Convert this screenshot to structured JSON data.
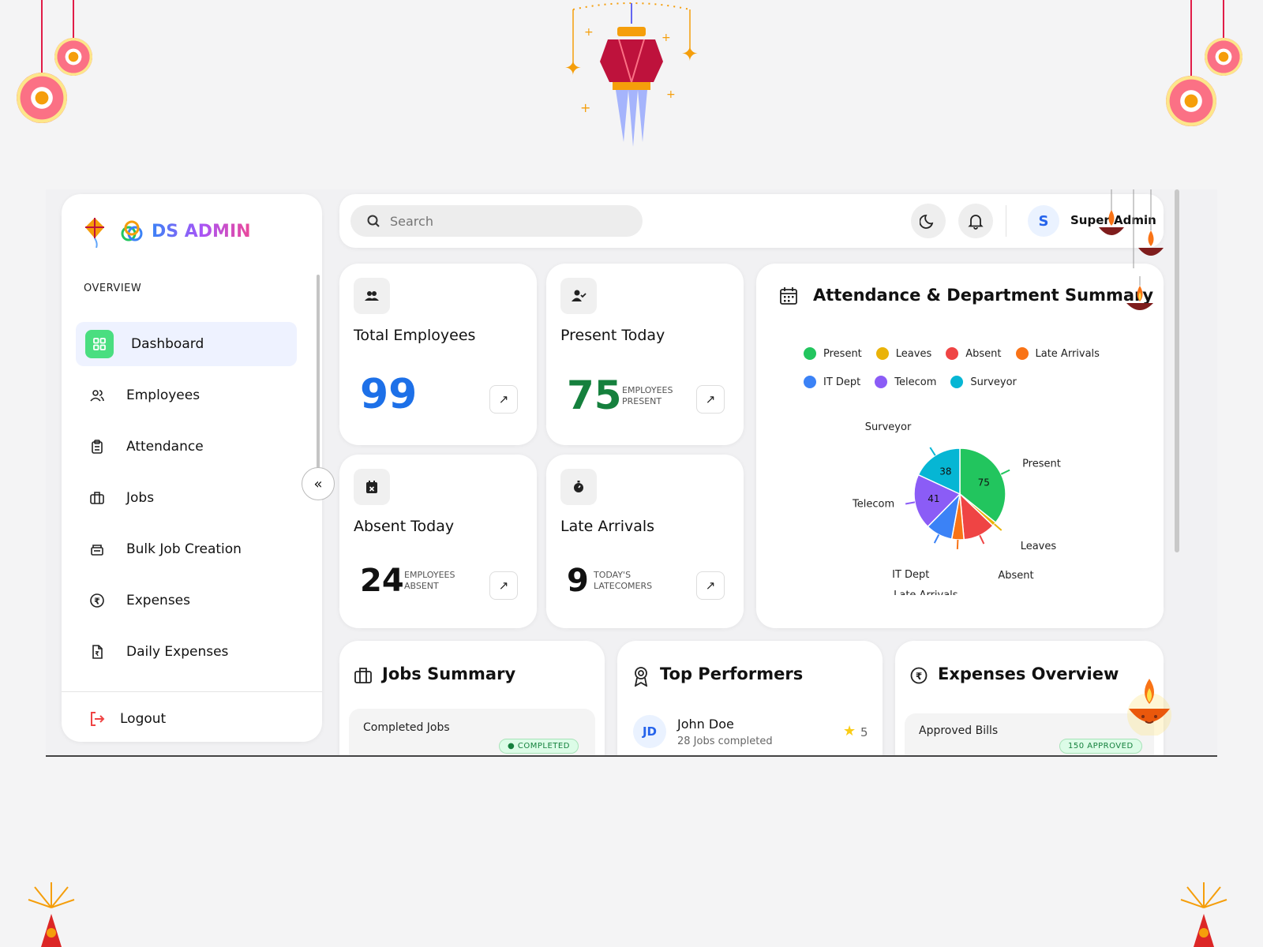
{
  "brand": {
    "name": "DS ADMIN"
  },
  "sidebar": {
    "section_label": "OVERVIEW",
    "items": [
      {
        "label": "Dashboard",
        "icon": "grid-icon",
        "active": true
      },
      {
        "label": "Employees",
        "icon": "users-icon"
      },
      {
        "label": "Attendance",
        "icon": "clipboard-icon"
      },
      {
        "label": "Jobs",
        "icon": "briefcase-icon"
      },
      {
        "label": "Bulk Job Creation",
        "icon": "stack-icon"
      },
      {
        "label": "Expenses",
        "icon": "rupee-icon"
      },
      {
        "label": "Daily Expenses",
        "icon": "receipt-icon"
      }
    ],
    "logout_label": "Logout",
    "collapse_glyph": "«"
  },
  "topbar": {
    "search_placeholder": "Search",
    "avatar_initial": "S",
    "user_name": "Super Admin"
  },
  "stats": {
    "total": {
      "title": "Total Employees",
      "value": "99"
    },
    "present": {
      "title": "Present Today",
      "value": "75",
      "sub": "EMPLOYEES PRESENT"
    },
    "absent": {
      "title": "Absent Today",
      "value": "24",
      "sub": "EMPLOYEES ABSENT"
    },
    "late": {
      "title": "Late Arrivals",
      "value": "9",
      "sub": "TODAY'S LATECOMERS"
    }
  },
  "arrow_glyph": "↗",
  "chart_card": {
    "title": "Attendance & Department Summary"
  },
  "chart_data": {
    "type": "pie",
    "title": "Attendance & Department Summary",
    "legend_placement": "top",
    "legend": [
      "Present",
      "Leaves",
      "Absent",
      "Late Arrivals",
      "IT Dept",
      "Telecom",
      "Surveyor"
    ],
    "slices": [
      {
        "label": "Present",
        "value": 75,
        "color": "#22c55e",
        "shown_value": "75"
      },
      {
        "label": "Leaves",
        "value": 3,
        "color": "#eab308",
        "shown_value": ""
      },
      {
        "label": "Absent",
        "value": 24,
        "color": "#ef4444",
        "shown_value": ""
      },
      {
        "label": "Late Arrivals",
        "value": 9,
        "color": "#f97316",
        "shown_value": ""
      },
      {
        "label": "IT Dept",
        "value": 20,
        "color": "#3b82f6",
        "shown_value": ""
      },
      {
        "label": "Telecom",
        "value": 41,
        "color": "#8b5cf6",
        "shown_value": "41"
      },
      {
        "label": "Surveyor",
        "value": 38,
        "color": "#06b6d4",
        "shown_value": "38"
      }
    ]
  },
  "bottom": {
    "jobs": {
      "title": "Jobs Summary",
      "row_label": "Completed Jobs",
      "badge": "● COMPLETED"
    },
    "top": {
      "title": "Top Performers",
      "initials": "JD",
      "name": "John Doe",
      "meta": "28 Jobs completed",
      "rating": "5"
    },
    "expenses": {
      "title": "Expenses Overview",
      "row_label": "Approved Bills",
      "badge": "150 APPROVED"
    }
  }
}
